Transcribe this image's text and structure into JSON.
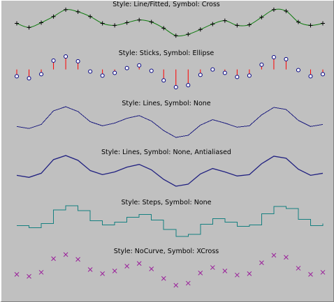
{
  "colors": {
    "background": "#c0c0c0",
    "fitted_line": "#0d7a0d",
    "sticks": "#ff0000",
    "lines": "#202080",
    "steps": "#158080",
    "xcross": "#9a1f9a",
    "symbol": "#000000"
  },
  "chart_data": {
    "type": "line",
    "x": [
      0,
      1,
      2,
      3,
      4,
      5,
      6,
      7,
      8,
      9,
      10,
      11,
      12,
      13,
      14,
      15,
      16,
      17,
      18,
      19,
      20,
      21,
      22,
      23,
      24,
      25
    ],
    "base_values": [
      -1.0,
      -1.3,
      -0.7,
      1.3,
      1.9,
      1.2,
      -0.3,
      -0.9,
      -0.5,
      0.2,
      0.6,
      -0.2,
      -1.6,
      -2.6,
      -2.3,
      -0.8,
      0.0,
      -0.5,
      -1.1,
      -0.9,
      0.7,
      1.8,
      1.5,
      -0.1,
      -1.0,
      -0.7
    ],
    "fitted_values": [
      -0.4,
      -1.0,
      -0.3,
      0.6,
      1.6,
      1.3,
      0.6,
      -0.4,
      -0.7,
      -0.3,
      0.1,
      -0.2,
      -1.1,
      -2.2,
      -2.0,
      -1.3,
      -0.5,
      0.0,
      -0.7,
      -0.6,
      0.5,
      1.6,
      1.4,
      -0.2,
      -0.7,
      -0.4
    ],
    "plots": [
      {
        "title": "Style: Line/Fitted, Symbol: Cross",
        "style": "fitted",
        "symbol": "cross"
      },
      {
        "title": "Style: Sticks, Symbol: Ellipse",
        "style": "sticks",
        "symbol": "ellipse"
      },
      {
        "title": "Style: Lines, Symbol: None",
        "style": "lines",
        "symbol": "none"
      },
      {
        "title": "Style: Lines, Symbol: None, Antialiased",
        "style": "lines",
        "symbol": "none"
      },
      {
        "title": "Style: Steps, Symbol: None",
        "style": "steps",
        "symbol": "none"
      },
      {
        "title": "Style: NoCurve, Symbol: XCross",
        "style": "nocurve",
        "symbol": "xcross"
      }
    ]
  }
}
